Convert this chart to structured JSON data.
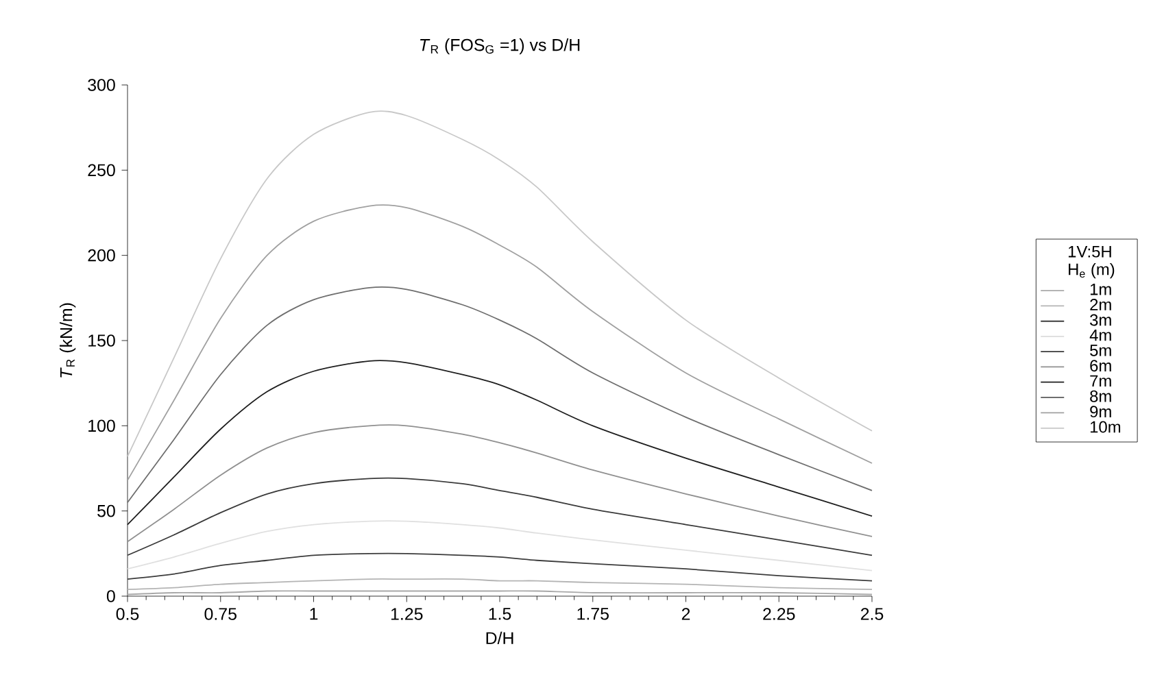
{
  "chart_data": {
    "type": "line",
    "title": "*T*$_{R}$ (FOS$_{G}$ =1) vs D/H",
    "xlabel": "D/H",
    "ylabel": "*T*$_{R}$ (kN/m)",
    "legend_title": "1V:5H H$_{e}$ (m)",
    "x": [
      0.5,
      0.625,
      0.75,
      0.875,
      1,
      1.15,
      1.25,
      1.4,
      1.5,
      1.6,
      1.75,
      2,
      2.25,
      2.5
    ],
    "series": [
      {
        "name": "1m",
        "color": "#a8a8a8",
        "values": [
          1,
          2,
          2,
          3,
          3,
          3,
          3,
          3,
          3,
          3,
          2,
          2,
          2,
          1
        ]
      },
      {
        "name": "2m",
        "color": "#b4b4b4",
        "values": [
          4,
          5,
          7,
          8,
          9,
          10,
          10,
          10,
          9,
          9,
          8,
          7,
          5,
          4
        ]
      },
      {
        "name": "3m",
        "color": "#3c3c3c",
        "values": [
          10,
          13,
          18,
          21,
          24,
          25,
          25,
          24,
          23,
          21,
          19,
          16,
          12,
          9
        ]
      },
      {
        "name": "4m",
        "color": "#e0e0e0",
        "values": [
          16,
          23,
          31,
          38,
          42,
          44,
          44,
          42,
          40,
          37,
          33,
          27,
          21,
          15
        ]
      },
      {
        "name": "5m",
        "color": "#3a3a3a",
        "values": [
          24,
          36,
          49,
          60,
          66,
          69,
          69,
          66,
          62,
          58,
          51,
          42,
          33,
          24
        ]
      },
      {
        "name": "6m",
        "color": "#909090",
        "values": [
          32,
          51,
          71,
          87,
          96,
          100,
          100,
          95,
          90,
          84,
          74,
          60,
          47,
          35
        ]
      },
      {
        "name": "7m",
        "color": "#1e1e1e",
        "values": [
          42,
          70,
          98,
          120,
          132,
          138,
          137,
          130,
          124,
          115,
          100,
          81,
          64,
          47
        ]
      },
      {
        "name": "8m",
        "color": "#6e6e6e",
        "values": [
          55,
          92,
          130,
          159,
          174,
          181,
          180,
          171,
          162,
          151,
          131,
          105,
          83,
          62
        ]
      },
      {
        "name": "9m",
        "color": "#a0a0a0",
        "values": [
          68,
          115,
          163,
          200,
          220,
          229,
          228,
          217,
          206,
          193,
          167,
          131,
          104,
          78
        ]
      },
      {
        "name": "10m",
        "color": "#c8c8c8",
        "values": [
          82,
          140,
          198,
          245,
          271,
          284,
          282,
          268,
          256,
          240,
          208,
          162,
          128,
          97
        ]
      }
    ],
    "xlim": [
      0.5,
      2.5
    ],
    "xticks": [
      0.5,
      0.75,
      1,
      1.25,
      1.5,
      1.75,
      2,
      2.25,
      2.5
    ],
    "ylim": [
      0,
      300
    ],
    "yticks": [
      0,
      50,
      100,
      150,
      200,
      250,
      300
    ],
    "grid": false,
    "legend": "right",
    "marker": "none",
    "line_style": "solid"
  }
}
